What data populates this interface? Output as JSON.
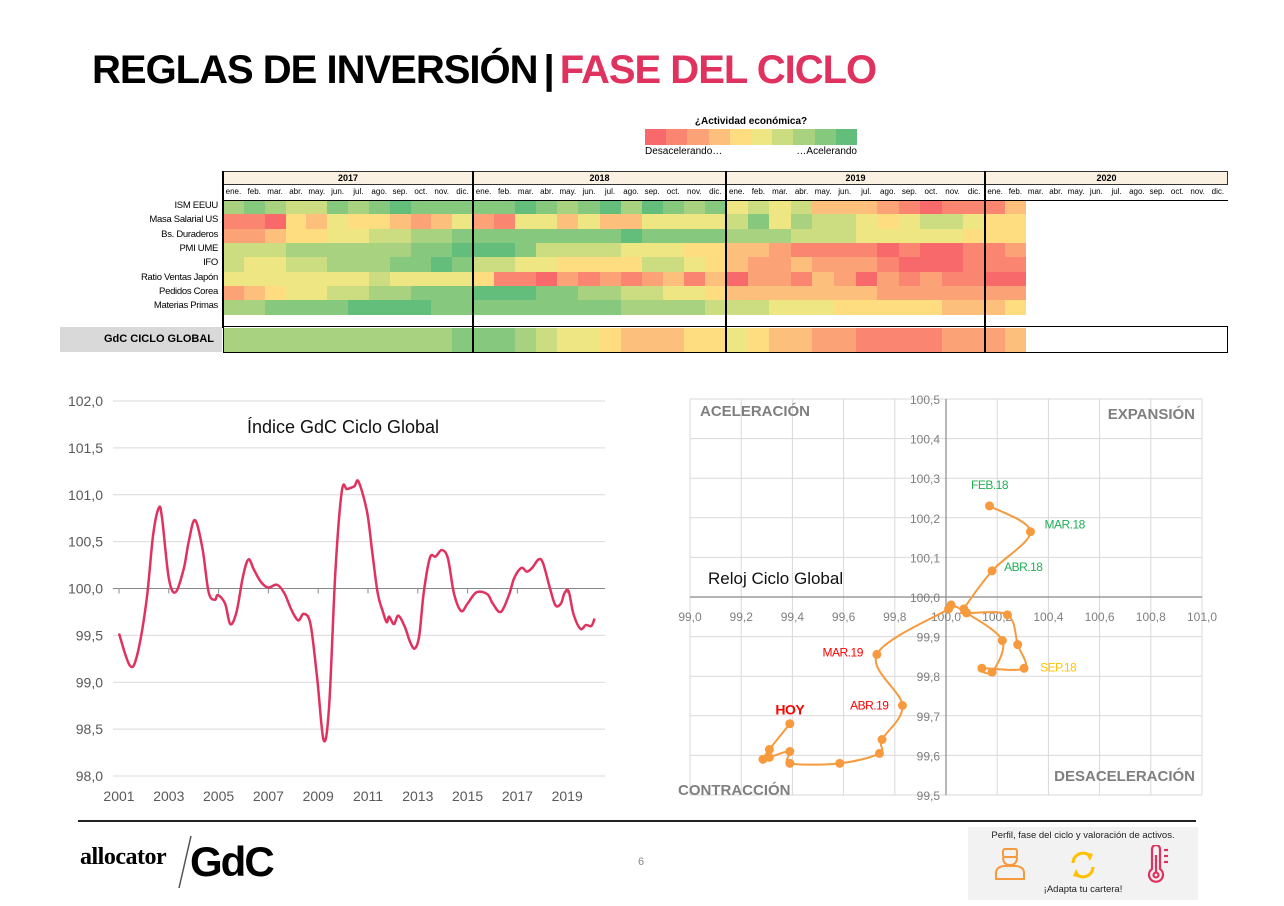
{
  "header": {
    "title_main": "REGLAS DE INVERSIÓN",
    "separator": "|",
    "title_accent": "FASE DEL CICLO"
  },
  "legend": {
    "title": "¿Actividad económica?",
    "low_label": "Desacelerando…",
    "high_label": "…Acelerando",
    "colors": {
      "low": "#F8696B",
      "mid": "#FFEB84",
      "high": "#63BE7B"
    }
  },
  "heatmap": {
    "scale": [
      0,
      9
    ],
    "years": [
      "2017",
      "2018",
      "2019",
      "2020"
    ],
    "months": [
      "ene.",
      "feb.",
      "mar.",
      "abr.",
      "may.",
      "jun.",
      "jul.",
      "ago.",
      "sep.",
      "oct.",
      "nov.",
      "dic."
    ],
    "rows": [
      {
        "label": "ISM EEUU",
        "values": [
          7,
          8,
          7,
          6,
          6,
          8,
          7,
          8,
          9,
          8,
          8,
          8,
          8,
          8,
          9,
          8,
          7,
          8,
          9,
          7,
          9,
          8,
          7,
          8,
          5,
          6,
          5,
          6,
          3,
          3,
          3,
          2,
          1,
          0,
          1,
          1,
          1,
          3
        ]
      },
      {
        "label": "Masa Salarial US",
        "values": [
          1,
          1,
          0,
          4,
          3,
          5,
          4,
          4,
          3,
          2,
          3,
          5,
          2,
          1,
          5,
          5,
          3,
          5,
          3,
          3,
          5,
          5,
          5,
          5,
          6,
          8,
          5,
          7,
          6,
          6,
          5,
          4,
          5,
          6,
          6,
          5,
          4,
          4
        ]
      },
      {
        "label": "Bs. Duraderos",
        "values": [
          2,
          2,
          3,
          4,
          4,
          5,
          5,
          6,
          6,
          7,
          7,
          8,
          8,
          8,
          8,
          8,
          8,
          8,
          8,
          9,
          8,
          8,
          8,
          8,
          7,
          7,
          7,
          6,
          6,
          6,
          5,
          5,
          5,
          5,
          5,
          4,
          4,
          4
        ]
      },
      {
        "label": "PMI UME",
        "values": [
          6,
          6,
          6,
          7,
          7,
          7,
          7,
          7,
          7,
          8,
          8,
          9,
          9,
          9,
          8,
          6,
          6,
          6,
          6,
          5,
          5,
          5,
          4,
          4,
          3,
          3,
          2,
          1,
          1,
          1,
          1,
          0,
          1,
          0,
          0,
          1,
          1,
          2
        ]
      },
      {
        "label": "IFO",
        "values": [
          6,
          5,
          5,
          6,
          6,
          7,
          7,
          7,
          8,
          8,
          9,
          8,
          6,
          6,
          5,
          5,
          4,
          4,
          4,
          4,
          6,
          6,
          5,
          4,
          3,
          2,
          2,
          3,
          2,
          2,
          2,
          1,
          0,
          0,
          0,
          1,
          1,
          1
        ]
      },
      {
        "label": "Ratio Ventas Japón",
        "values": [
          5,
          5,
          5,
          5,
          5,
          5,
          5,
          6,
          5,
          5,
          5,
          5,
          4,
          1,
          1,
          0,
          2,
          1,
          2,
          1,
          2,
          3,
          1,
          3,
          0,
          2,
          2,
          1,
          3,
          2,
          0,
          2,
          1,
          2,
          1,
          1,
          0,
          0
        ]
      },
      {
        "label": "Pedidos Corea",
        "values": [
          2,
          3,
          4,
          5,
          5,
          6,
          6,
          7,
          7,
          8,
          8,
          8,
          9,
          9,
          9,
          8,
          8,
          7,
          7,
          6,
          6,
          5,
          5,
          4,
          3,
          3,
          3,
          3,
          3,
          3,
          3,
          2,
          2,
          2,
          2,
          2,
          2,
          2
        ]
      },
      {
        "label": "Materias Primas",
        "values": [
          7,
          7,
          8,
          8,
          8,
          8,
          9,
          9,
          9,
          9,
          8,
          8,
          8,
          8,
          8,
          8,
          8,
          8,
          8,
          7,
          7,
          7,
          7,
          6,
          6,
          6,
          5,
          5,
          5,
          4,
          4,
          4,
          4,
          4,
          3,
          3,
          3,
          4
        ]
      }
    ],
    "global_row": {
      "label": "GdC CICLO GLOBAL",
      "values": [
        7,
        7,
        7,
        7,
        7,
        7,
        7,
        7,
        7,
        7,
        7,
        8,
        8,
        8,
        7,
        6,
        5,
        5,
        4,
        3,
        3,
        3,
        4,
        4,
        5,
        4,
        3,
        3,
        2,
        2,
        1,
        1,
        1,
        1,
        2,
        2,
        2,
        3
      ]
    }
  },
  "chart_data": [
    {
      "type": "line",
      "title": "Índice GdC Ciclo Global",
      "xlabel": "",
      "ylabel": "",
      "xlim": [
        2001,
        2020.2
      ],
      "ylim": [
        98.0,
        102.0
      ],
      "grid": true,
      "x_ticks": [
        "2001",
        "2003",
        "2005",
        "2007",
        "2009",
        "2011",
        "2013",
        "2015",
        "2017",
        "2019"
      ],
      "y_ticks": [
        "98,0",
        "98,5",
        "99,0",
        "99,5",
        "100,0",
        "100,5",
        "101,0",
        "101,5",
        "102,0"
      ],
      "series": [
        {
          "name": "Índice GdC Ciclo Global",
          "color": "#E0325F",
          "x": [
            2001.0,
            2001.43,
            2001.72,
            2002.1,
            2002.37,
            2002.6,
            2002.73,
            2003.0,
            2003.27,
            2003.6,
            2003.8,
            2004.05,
            2004.35,
            2004.6,
            2004.85,
            2004.97,
            2005.26,
            2005.47,
            2005.72,
            2005.98,
            2006.2,
            2006.42,
            2006.7,
            2006.99,
            2007.35,
            2007.64,
            2007.93,
            2008.2,
            2008.42,
            2008.69,
            2008.96,
            2009.22,
            2009.44,
            2009.69,
            2009.95,
            2010.16,
            2010.45,
            2010.62,
            2010.96,
            2011.17,
            2011.39,
            2011.6,
            2011.75,
            2011.85,
            2012.04,
            2012.22,
            2012.48,
            2012.69,
            2012.88,
            2013.06,
            2013.24,
            2013.49,
            2013.71,
            2013.97,
            2014.21,
            2014.45,
            2014.74,
            2015.0,
            2015.36,
            2015.79,
            2016.01,
            2016.33,
            2016.66,
            2016.87,
            2017.16,
            2017.38,
            2017.59,
            2017.85,
            2018.03,
            2018.31,
            2018.53,
            2018.75,
            2018.89,
            2019.06,
            2019.25,
            2019.53,
            2019.75,
            2019.97,
            2020.1
          ],
          "y": [
            99.52,
            99.18,
            99.28,
            99.86,
            100.57,
            100.86,
            100.75,
            100.11,
            99.96,
            100.21,
            100.5,
            100.73,
            100.43,
            99.96,
            99.88,
            99.93,
            99.84,
            99.62,
            99.75,
            100.13,
            100.31,
            100.2,
            100.07,
            100.01,
            100.04,
            99.95,
            99.77,
            99.66,
            99.73,
            99.62,
            99.04,
            98.38,
            98.75,
            100.18,
            101.04,
            101.06,
            101.09,
            101.14,
            100.82,
            100.39,
            99.95,
            99.75,
            99.64,
            99.7,
            99.62,
            99.71,
            99.59,
            99.43,
            99.36,
            99.5,
            99.96,
            100.33,
            100.34,
            100.41,
            100.32,
            99.95,
            99.76,
            99.84,
            99.96,
            99.94,
            99.84,
            99.75,
            99.93,
            100.11,
            100.22,
            100.18,
            100.22,
            100.31,
            100.27,
            100.0,
            99.82,
            99.84,
            99.95,
            99.97,
            99.73,
            99.57,
            99.61,
            99.6,
            99.68
          ]
        }
      ]
    },
    {
      "type": "scatter",
      "title": "Reloj Ciclo Global",
      "xlim": [
        99.0,
        101.0
      ],
      "ylim": [
        99.5,
        100.5
      ],
      "grid": true,
      "x_ticks": [
        "99,0",
        "99,2",
        "99,4",
        "99,6",
        "99,8",
        "100,0",
        "100,2",
        "100,4",
        "100,6",
        "100,8",
        "101,0"
      ],
      "y_ticks": [
        "99,5",
        "99,6",
        "99,7",
        "99,8",
        "99,9",
        "100,0",
        "100,1",
        "100,2",
        "100,3",
        "100,4",
        "100,5"
      ],
      "quadrants": {
        "top_left": "ACELERACIÓN",
        "top_right": "EXPANSIÓN",
        "bottom_left": "CONTRACCIÓN",
        "bottom_right": "DESACELERACIÓN"
      },
      "series": [
        {
          "name": "Reloj Ciclo Global",
          "color": "#F79A3E",
          "x": [
            100.17,
            100.33,
            100.18,
            100.07,
            100.08,
            100.24,
            100.28,
            100.305,
            100.14,
            100.18,
            100.22,
            100.08,
            100.02,
            100.01,
            99.73,
            99.83,
            99.75,
            99.74,
            99.585,
            99.39,
            99.39,
            99.31,
            99.285,
            99.31,
            99.39
          ],
          "y": [
            100.23,
            100.165,
            100.066,
            99.97,
            99.96,
            99.955,
            99.88,
            99.82,
            99.82,
            99.81,
            99.89,
            99.96,
            99.98,
            99.97,
            99.855,
            99.726,
            99.64,
            99.605,
            99.58,
            99.58,
            99.61,
            99.595,
            99.59,
            99.615,
            99.68
          ]
        }
      ],
      "point_labels": [
        {
          "index": 0,
          "text": "FEB.18",
          "color": "#1FAF55"
        },
        {
          "index": 1,
          "text": "MAR.18",
          "color": "#1FAF55"
        },
        {
          "index": 2,
          "text": "ABR.18",
          "color": "#1FAF55"
        },
        {
          "index": 7,
          "text": "SEP.18",
          "color": "#FFC000"
        },
        {
          "index": 14,
          "text": "MAR.19",
          "color": "#FF0000"
        },
        {
          "index": 15,
          "text": "ABR.19",
          "color": "#FF0000"
        },
        {
          "index": 24,
          "text": "HOY",
          "color": "#FF0000"
        }
      ]
    }
  ],
  "footer": {
    "logo_text_left": "allocator",
    "logo_text_right": "GdC",
    "page_number": "6",
    "promo_title": "Perfil, fase del ciclo y valoración de activos.",
    "promo_icons": [
      "investor-profile-icon",
      "cycle-arrows-icon",
      "thermometer-icon"
    ],
    "promo_cta": "¡Adapta tu cartera!"
  }
}
